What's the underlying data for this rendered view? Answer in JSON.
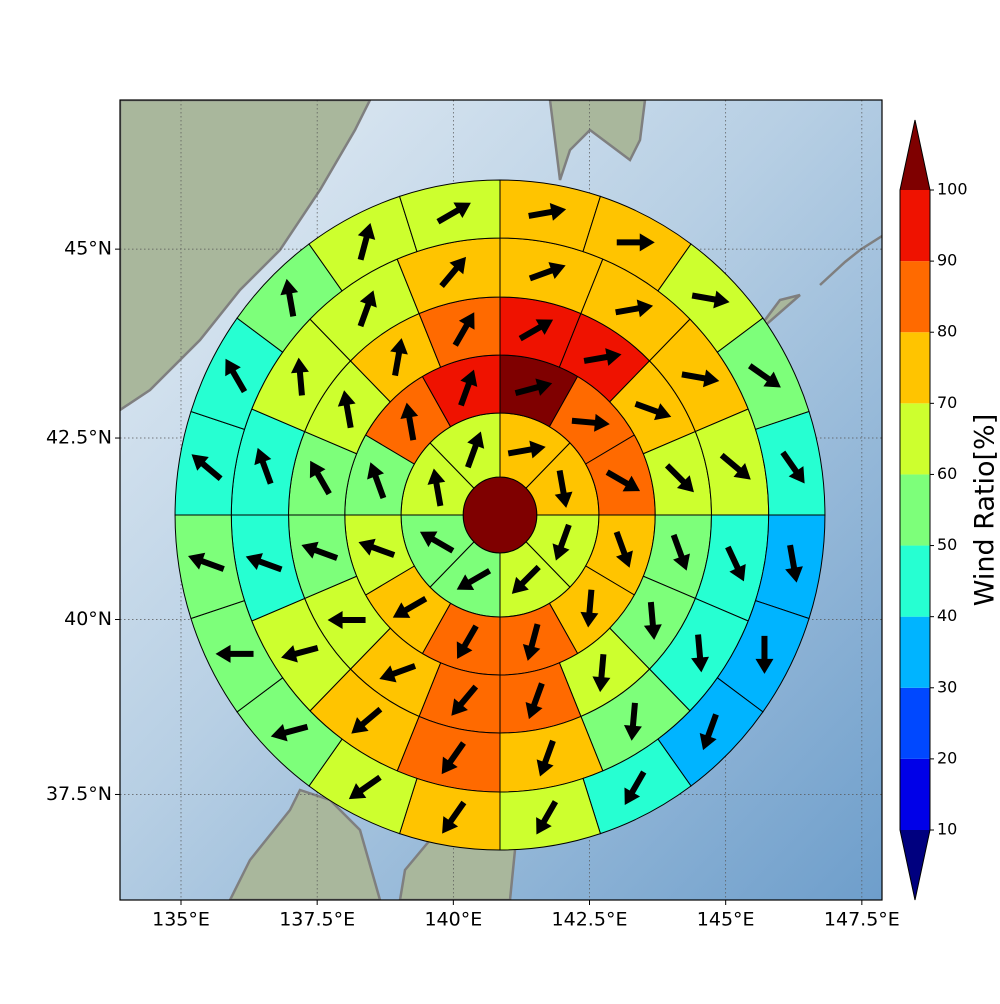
{
  "chart_data": {
    "type": "polar-sector-map",
    "colorbar_label": "Wind Ratio[%]",
    "xlim": [
      133.88,
      147.87
    ],
    "ylim": [
      35.95,
      46.9
    ],
    "xticks": [
      {
        "value": 135,
        "label": "135°E"
      },
      {
        "value": 137.5,
        "label": "137.5°E"
      },
      {
        "value": 140,
        "label": "140°E"
      },
      {
        "value": 142.5,
        "label": "142.5°E"
      },
      {
        "value": 145,
        "label": "145°E"
      },
      {
        "value": 147.5,
        "label": "147.5°E"
      }
    ],
    "yticks": [
      {
        "value": 37.5,
        "label": "37.5°N"
      },
      {
        "value": 40,
        "label": "40°N"
      },
      {
        "value": 42.5,
        "label": "42.5°N"
      },
      {
        "value": 45,
        "label": "45°N"
      }
    ],
    "grid": true,
    "levels": [
      10,
      20,
      30,
      40,
      50,
      60,
      70,
      80,
      90,
      100
    ],
    "colors": [
      "#0000e8",
      "#0048ff",
      "#00b4ff",
      "#26ffd2",
      "#7dff7a",
      "#cdff2e",
      "#ffc400",
      "#ff6a00",
      "#ef1200"
    ],
    "under_color": "#00007f",
    "over_color": "#7f0000",
    "center_value": 105,
    "rings": [
      {
        "values": [
          75,
          75,
          65,
          65,
          55,
          55,
          65,
          65
        ],
        "directions": [
          80,
          170,
          200,
          225,
          240,
          300,
          350,
          20
        ]
      },
      {
        "values": [
          105,
          85,
          85,
          75,
          75,
          85,
          85,
          75,
          65,
          55,
          85,
          95
        ],
        "directions": [
          75,
          95,
          120,
          160,
          185,
          195,
          210,
          240,
          290,
          340,
          350,
          20
        ]
      },
      {
        "values": [
          95,
          95,
          75,
          65,
          55,
          55,
          65,
          85,
          85,
          75,
          65,
          55,
          55,
          65,
          75,
          85
        ],
        "directions": [
          60,
          80,
          110,
          135,
          160,
          175,
          185,
          200,
          220,
          250,
          270,
          290,
          330,
          350,
          10,
          30
        ]
      },
      {
        "values": [
          75,
          75,
          75,
          65,
          45,
          45,
          55,
          75,
          85,
          75,
          65,
          45,
          45,
          65,
          65,
          75
        ],
        "directions": [
          70,
          80,
          100,
          130,
          155,
          175,
          185,
          200,
          215,
          230,
          255,
          290,
          340,
          355,
          20,
          40
        ]
      },
      {
        "values": [
          75,
          75,
          65,
          55,
          45,
          35,
          35,
          35,
          45,
          65,
          75,
          65,
          55,
          55,
          55,
          45,
          45,
          55,
          65,
          65
        ],
        "directions": [
          80,
          90,
          100,
          125,
          145,
          170,
          180,
          200,
          210,
          210,
          215,
          235,
          255,
          270,
          290,
          310,
          330,
          350,
          15,
          60
        ]
      }
    ]
  }
}
